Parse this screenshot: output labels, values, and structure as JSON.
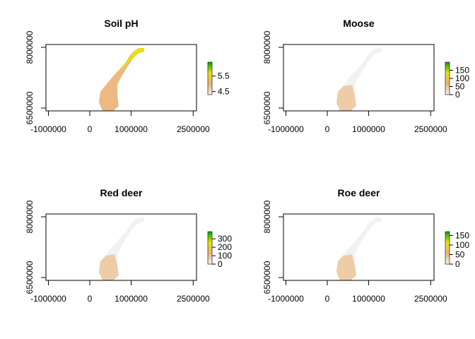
{
  "chart_data": [
    {
      "type": "raster",
      "title": "Soil pH",
      "xlim": [
        -1060000,
        2580000
      ],
      "ylim": [
        6430000,
        8070000
      ],
      "xticks": [
        -1000000,
        0,
        1000000,
        2500000
      ],
      "yticks": [
        6500000,
        8000000
      ],
      "legend_lim": [
        4.3,
        6.4
      ],
      "legend_ticks": [
        4.5,
        5.5
      ],
      "colors": [
        "#F2F2F2",
        "#ECB176",
        "#E6E600",
        "#00A600"
      ]
    },
    {
      "type": "raster",
      "title": "Moose",
      "xlim": [
        -1060000,
        2580000
      ],
      "ylim": [
        6430000,
        8070000
      ],
      "xticks": [
        -1000000,
        0,
        1000000,
        2500000
      ],
      "yticks": [
        6500000,
        8000000
      ],
      "legend_lim": [
        0,
        200
      ],
      "legend_ticks": [
        0,
        50,
        100,
        150
      ],
      "colors": [
        "#F2F2F2",
        "#ECB176",
        "#E6E600",
        "#00A600"
      ]
    },
    {
      "type": "raster",
      "title": "Red deer",
      "xlim": [
        -1060000,
        2580000
      ],
      "ylim": [
        6430000,
        8070000
      ],
      "xticks": [
        -1000000,
        0,
        1000000,
        2500000
      ],
      "yticks": [
        6500000,
        8000000
      ],
      "legend_lim": [
        0,
        385
      ],
      "legend_ticks": [
        0,
        100,
        200,
        300
      ],
      "colors": [
        "#F2F2F2",
        "#ECB176",
        "#E6E600",
        "#00A600"
      ]
    },
    {
      "type": "raster",
      "title": "Roe deer",
      "xlim": [
        -1060000,
        2580000
      ],
      "ylim": [
        6430000,
        8070000
      ],
      "xticks": [
        -1000000,
        0,
        1000000,
        2500000
      ],
      "yticks": [
        6500000,
        8000000
      ],
      "legend_lim": [
        0,
        170
      ],
      "legend_ticks": [
        0,
        50,
        100,
        150
      ],
      "colors": [
        "#F2F2F2",
        "#ECB176",
        "#E6E600",
        "#00A600"
      ]
    }
  ]
}
